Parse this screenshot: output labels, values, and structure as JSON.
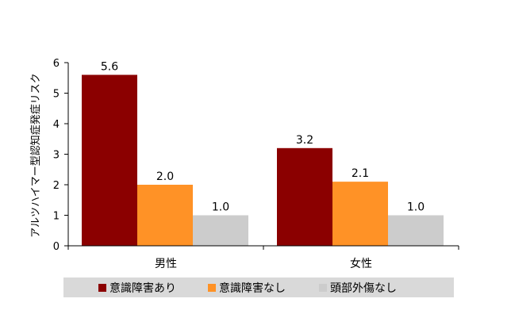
{
  "chart_data": {
    "type": "bar",
    "title": "",
    "xlabel": "",
    "ylabel": "アルツハイマー型認知症発症リスク",
    "ylim": [
      0,
      6
    ],
    "yticks": [
      0,
      1,
      2,
      3,
      4,
      5,
      6
    ],
    "categories": [
      "男性",
      "女性"
    ],
    "series": [
      {
        "name": "意識障害あり",
        "color": "#8b0000",
        "values": [
          5.6,
          3.2
        ],
        "labels": [
          "5.6",
          "3.2"
        ]
      },
      {
        "name": "意識障害なし",
        "color": "#ff9226",
        "values": [
          2.0,
          2.1
        ],
        "labels": [
          "2.0",
          "2.1"
        ]
      },
      {
        "name": "頭部外傷なし",
        "color": "#cccccc",
        "values": [
          1.0,
          1.0
        ],
        "labels": [
          "1.0",
          "1.0"
        ]
      }
    ],
    "grid": false,
    "legend_position": "bottom"
  }
}
